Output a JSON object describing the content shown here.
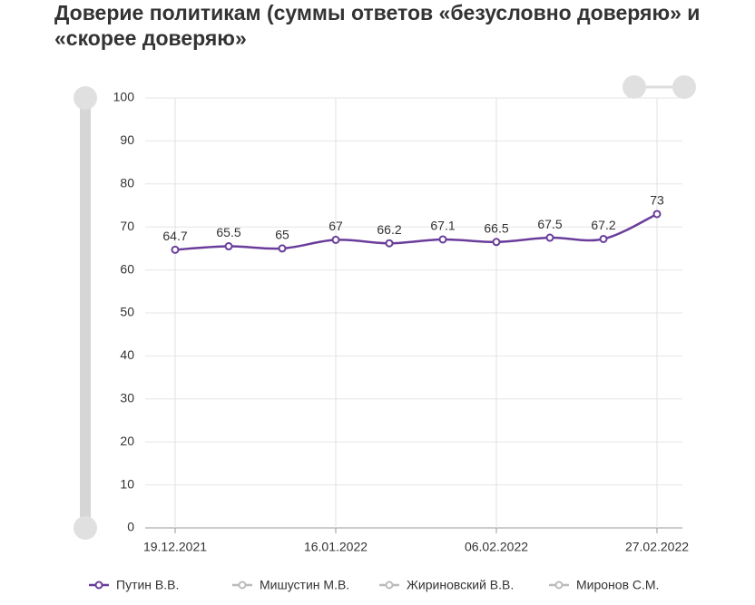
{
  "chart_data": {
    "type": "line",
    "title": "Доверие политикам (суммы ответов «безусловно доверяю» и «скорее доверяю»",
    "categories": [
      "19.12.2021",
      null,
      null,
      "16.01.2022",
      null,
      null,
      "06.02.2022",
      null,
      null,
      "27.02.2022"
    ],
    "series": [
      {
        "name": "Путин В.В.",
        "color": "#6a3d9a",
        "visible": true,
        "values": [
          64.7,
          65.5,
          65,
          67,
          66.2,
          67.1,
          66.5,
          67.5,
          67.2,
          73
        ]
      },
      {
        "name": "Мишустин М.В.",
        "color": "#aaaaaa",
        "visible": false
      },
      {
        "name": "Жириновский В.В.",
        "color": "#aaaaaa",
        "visible": false
      },
      {
        "name": "Миронов С.М.",
        "color": "#aaaaaa",
        "visible": false
      }
    ],
    "ylim": [
      0,
      100
    ],
    "yticks": [
      0,
      10,
      20,
      30,
      40,
      50,
      60,
      70,
      80,
      90,
      100
    ],
    "grid": true,
    "legend": "bottom"
  }
}
